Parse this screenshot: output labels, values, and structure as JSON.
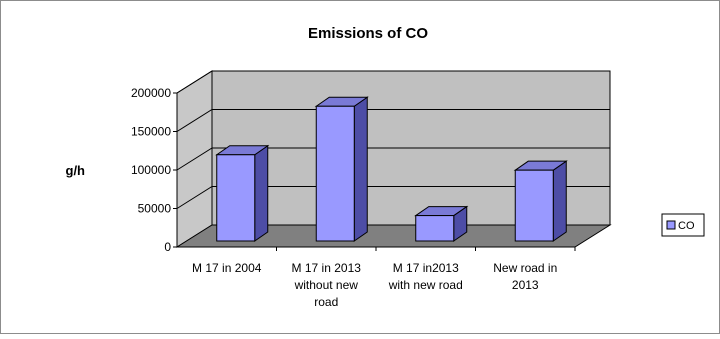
{
  "chart_data": {
    "type": "bar",
    "title": "Emissions of CO",
    "xlabel": "",
    "ylabel": "g/h",
    "categories": [
      [
        "M 17 in 2004"
      ],
      [
        "M 17 in 2013",
        "without new",
        "road"
      ],
      [
        "M 17 in2013",
        "with new road"
      ],
      [
        "New road in",
        "2013"
      ]
    ],
    "series": [
      {
        "name": "CO",
        "values": [
          112000,
          175000,
          33000,
          92000
        ]
      }
    ],
    "ylim": [
      0,
      200000
    ],
    "yticks": [
      0,
      50000,
      100000,
      150000,
      200000
    ],
    "grid": true,
    "three_d": true,
    "legend_position": "right"
  },
  "colors": {
    "bar_front": "#9999ff",
    "bar_side": "#4d4da6",
    "bar_top": "#7a7ad6",
    "back_wall": "#c0c0c0",
    "floor": "#808080",
    "left_wall": "#c8c8c8",
    "gridline": "#000000",
    "outline": "#000000"
  }
}
